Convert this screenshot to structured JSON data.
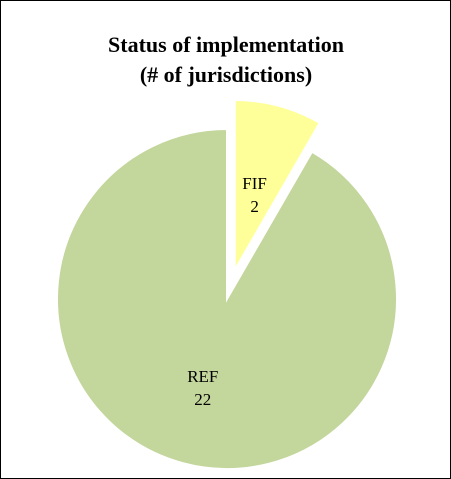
{
  "chart_data": {
    "type": "pie",
    "title": [
      "Status of implementation",
      "(# of jurisdictions)"
    ],
    "categories": [
      "FIF",
      "REF"
    ],
    "values": [
      2,
      22
    ],
    "colors": [
      "#ffff99",
      "#c3d69b"
    ],
    "explode": [
      true,
      false
    ]
  }
}
